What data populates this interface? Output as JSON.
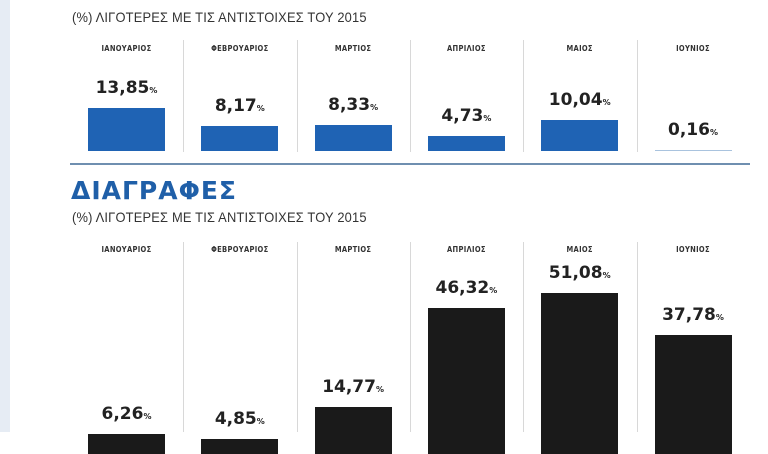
{
  "chart_data": [
    {
      "type": "bar",
      "title": "",
      "subtitle": "(%) ΛΙΓΟΤΕΡΕΣ ΜΕ ΤΙΣ ΑΝΤΙΣΤΟΙΧΕΣ ΤΟΥ 2015",
      "categories": [
        "ΙΑΝΟΥΑΡΙΟΣ",
        "ΦΕΒΡΟΥΑΡΙΟΣ",
        "ΜΑΡΤΙΟΣ",
        "ΑΠΡΙΛΙΟΣ",
        "ΜΑΙΟΣ",
        "ΙΟΥΝΙΟΣ"
      ],
      "values": [
        13.85,
        8.17,
        8.33,
        4.73,
        10.04,
        0.16
      ],
      "labels": [
        "13,85",
        "8,17",
        "8,33",
        "4,73",
        "10,04",
        "0,16"
      ],
      "unit": "%",
      "color": "#1f63b4",
      "grid": false
    },
    {
      "type": "bar",
      "title": "ΔΙΑΓΡΑΦΕΣ",
      "subtitle": "(%) ΛΙΓΟΤΕΡΕΣ ΜΕ ΤΙΣ ΑΝΤΙΣΤΟΙΧΕΣ ΤΟΥ 2015",
      "categories": [
        "ΙΑΝΟΥΑΡΙΟΣ",
        "ΦΕΒΡΟΥΑΡΙΟΣ",
        "ΜΑΡΤΙΟΣ",
        "ΑΠΡΙΛΙΟΣ",
        "ΜΑΙΟΣ",
        "ΙΟΥΝΙΟΣ"
      ],
      "values": [
        6.26,
        4.85,
        14.77,
        46.32,
        51.08,
        37.78
      ],
      "labels": [
        "6,26",
        "4,85",
        "14,77",
        "46,32",
        "51,08",
        "37,78"
      ],
      "unit": "%",
      "color": "#1a1a1a",
      "grid": false
    }
  ]
}
